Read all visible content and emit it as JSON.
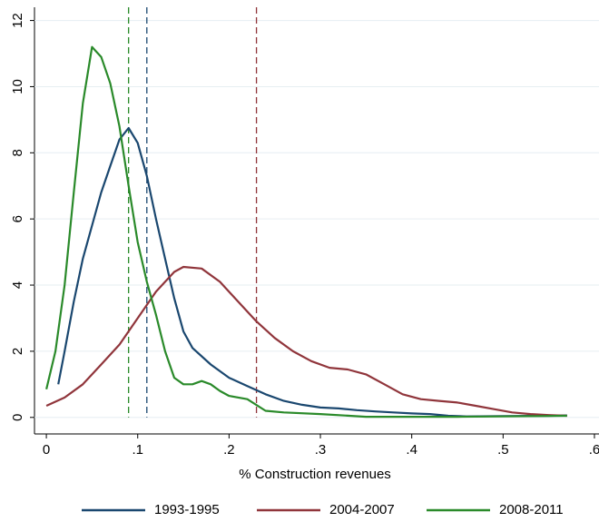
{
  "chart_data": {
    "type": "line",
    "xlabel": "% Construction revenues",
    "xlim": [
      -0.013,
      0.605
    ],
    "ylim": [
      -0.5,
      12.4
    ],
    "xticks": [
      0,
      {
        "value": 0.1,
        "label": ".1"
      },
      {
        "value": 0.2,
        "label": ".2"
      },
      {
        "value": 0.3,
        "label": ".3"
      },
      {
        "value": 0.4,
        "label": ".4"
      },
      {
        "value": 0.5,
        "label": ".5"
      },
      {
        "value": 0.6,
        "label": ".6"
      }
    ],
    "yticks": [
      0,
      2,
      4,
      6,
      8,
      10,
      12
    ],
    "grid": true,
    "vlines": [
      {
        "value": 0.09,
        "color": "#2a8a2a"
      },
      {
        "value": 0.11,
        "color": "#1a476f"
      },
      {
        "value": 0.23,
        "color": "#90353b"
      }
    ],
    "series": [
      {
        "name": "1993-1995",
        "color": "#1a476f",
        "x": [
          0.013,
          0.02,
          0.03,
          0.04,
          0.05,
          0.06,
          0.07,
          0.08,
          0.09,
          0.1,
          0.11,
          0.12,
          0.13,
          0.14,
          0.15,
          0.16,
          0.18,
          0.2,
          0.22,
          0.24,
          0.26,
          0.28,
          0.3,
          0.32,
          0.34,
          0.36,
          0.38,
          0.4,
          0.42,
          0.44,
          0.46,
          0.5,
          0.55,
          0.57
        ],
        "values": [
          1.0,
          2.0,
          3.5,
          4.8,
          5.8,
          6.8,
          7.6,
          8.4,
          8.75,
          8.3,
          7.3,
          6.0,
          4.8,
          3.6,
          2.6,
          2.1,
          1.6,
          1.2,
          0.95,
          0.7,
          0.5,
          0.38,
          0.3,
          0.27,
          0.22,
          0.18,
          0.15,
          0.12,
          0.1,
          0.05,
          0.03,
          0.04,
          0.05,
          0.06
        ]
      },
      {
        "name": "2004-2007",
        "color": "#90353b",
        "x": [
          0,
          0.02,
          0.04,
          0.06,
          0.08,
          0.1,
          0.12,
          0.14,
          0.15,
          0.17,
          0.19,
          0.21,
          0.23,
          0.25,
          0.27,
          0.29,
          0.31,
          0.33,
          0.35,
          0.37,
          0.39,
          0.41,
          0.43,
          0.45,
          0.47,
          0.49,
          0.51,
          0.53,
          0.55,
          0.57
        ],
        "values": [
          0.35,
          0.6,
          1.0,
          1.6,
          2.2,
          3.0,
          3.8,
          4.4,
          4.55,
          4.5,
          4.1,
          3.5,
          2.9,
          2.4,
          2.0,
          1.7,
          1.5,
          1.45,
          1.3,
          1.0,
          0.7,
          0.55,
          0.5,
          0.45,
          0.35,
          0.25,
          0.15,
          0.1,
          0.07,
          0.05
        ]
      },
      {
        "name": "2008-2011",
        "color": "#2a8a2a",
        "x": [
          0,
          0.01,
          0.02,
          0.03,
          0.04,
          0.05,
          0.06,
          0.07,
          0.08,
          0.09,
          0.1,
          0.11,
          0.12,
          0.13,
          0.14,
          0.15,
          0.16,
          0.17,
          0.18,
          0.19,
          0.2,
          0.22,
          0.24,
          0.26,
          0.3,
          0.35,
          0.45,
          0.5,
          0.57
        ],
        "values": [
          0.85,
          2.0,
          4.0,
          6.8,
          9.5,
          11.2,
          10.9,
          10.1,
          8.8,
          7.0,
          5.3,
          4.1,
          3.1,
          2.0,
          1.2,
          1.0,
          1.0,
          1.1,
          1.0,
          0.8,
          0.65,
          0.55,
          0.2,
          0.15,
          0.1,
          0.02,
          0.02,
          0.03,
          0.05
        ]
      }
    ]
  }
}
